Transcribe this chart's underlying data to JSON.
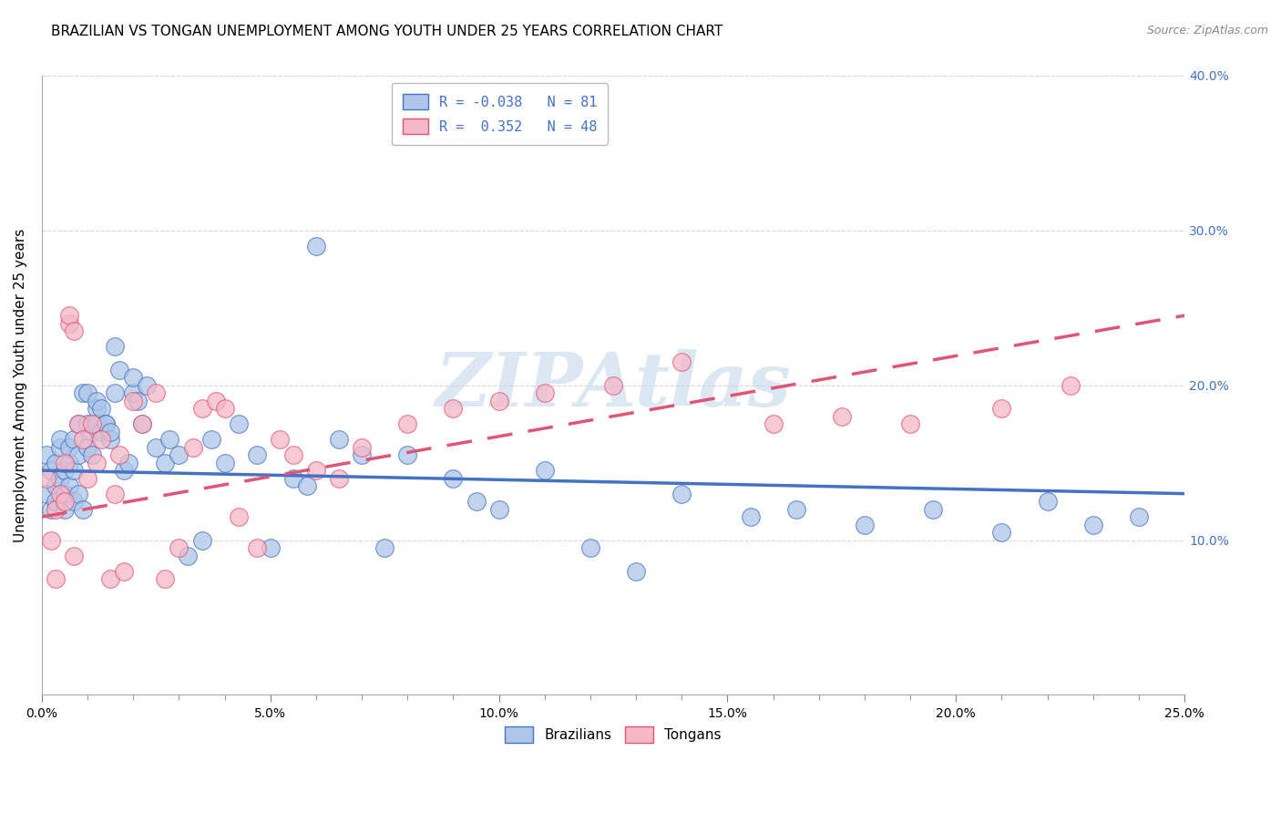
{
  "title": "BRAZILIAN VS TONGAN UNEMPLOYMENT AMONG YOUTH UNDER 25 YEARS CORRELATION CHART",
  "source": "Source: ZipAtlas.com",
  "ylabel": "Unemployment Among Youth under 25 years",
  "xlim": [
    0.0,
    0.25
  ],
  "ylim": [
    0.0,
    0.4
  ],
  "xtick_vals": [
    0.0,
    0.05,
    0.1,
    0.15,
    0.2,
    0.25
  ],
  "xtick_labels": [
    "0.0%",
    "5.0%",
    "10.0%",
    "15.0%",
    "20.0%",
    "25.0%"
  ],
  "ytick_vals": [
    0.1,
    0.2,
    0.3,
    0.4
  ],
  "ytick_labels": [
    "10.0%",
    "20.0%",
    "30.0%",
    "40.0%"
  ],
  "brazilian_fill_color": "#aec6e8",
  "brazilian_edge_color": "#4472c4",
  "tongan_fill_color": "#f4b8c8",
  "tongan_edge_color": "#e05575",
  "brazil_line_color": "#4472c4",
  "tongan_line_color": "#e05575",
  "watermark": "ZIPAtlas",
  "watermark_color": "#c5d8ee",
  "grid_color": "#cccccc",
  "bg_color": "#ffffff",
  "brazil_line_intercept": 0.145,
  "brazil_line_slope": -0.06,
  "tongan_line_intercept": 0.115,
  "tongan_line_slope": 0.52,
  "title_fontsize": 11,
  "tick_fontsize": 10,
  "legend_fontsize": 11,
  "ylabel_fontsize": 11,
  "brazilian_R": -0.038,
  "brazilian_N": 81,
  "tongan_R": 0.352,
  "tongan_N": 48,
  "brazilians_x": [
    0.001,
    0.001,
    0.002,
    0.002,
    0.003,
    0.003,
    0.003,
    0.004,
    0.004,
    0.004,
    0.005,
    0.005,
    0.005,
    0.006,
    0.006,
    0.006,
    0.007,
    0.007,
    0.007,
    0.008,
    0.008,
    0.008,
    0.009,
    0.009,
    0.01,
    0.01,
    0.01,
    0.011,
    0.011,
    0.012,
    0.012,
    0.012,
    0.013,
    0.013,
    0.014,
    0.014,
    0.015,
    0.015,
    0.016,
    0.016,
    0.017,
    0.018,
    0.019,
    0.02,
    0.02,
    0.021,
    0.022,
    0.023,
    0.025,
    0.027,
    0.028,
    0.03,
    0.032,
    0.035,
    0.037,
    0.04,
    0.043,
    0.047,
    0.05,
    0.055,
    0.058,
    0.06,
    0.065,
    0.07,
    0.075,
    0.08,
    0.09,
    0.095,
    0.1,
    0.11,
    0.12,
    0.13,
    0.14,
    0.155,
    0.165,
    0.18,
    0.195,
    0.21,
    0.22,
    0.23,
    0.24
  ],
  "brazilians_y": [
    0.13,
    0.155,
    0.12,
    0.145,
    0.135,
    0.15,
    0.125,
    0.14,
    0.16,
    0.165,
    0.13,
    0.145,
    0.12,
    0.15,
    0.135,
    0.16,
    0.145,
    0.165,
    0.125,
    0.13,
    0.155,
    0.175,
    0.12,
    0.195,
    0.175,
    0.16,
    0.195,
    0.155,
    0.17,
    0.185,
    0.19,
    0.175,
    0.185,
    0.17,
    0.175,
    0.175,
    0.165,
    0.17,
    0.195,
    0.225,
    0.21,
    0.145,
    0.15,
    0.195,
    0.205,
    0.19,
    0.175,
    0.2,
    0.16,
    0.15,
    0.165,
    0.155,
    0.09,
    0.1,
    0.165,
    0.15,
    0.175,
    0.155,
    0.095,
    0.14,
    0.135,
    0.29,
    0.165,
    0.155,
    0.095,
    0.155,
    0.14,
    0.125,
    0.12,
    0.145,
    0.095,
    0.08,
    0.13,
    0.115,
    0.12,
    0.11,
    0.12,
    0.105,
    0.125,
    0.11,
    0.115
  ],
  "tongans_x": [
    0.001,
    0.002,
    0.003,
    0.003,
    0.004,
    0.005,
    0.005,
    0.006,
    0.006,
    0.007,
    0.007,
    0.008,
    0.009,
    0.01,
    0.011,
    0.012,
    0.013,
    0.015,
    0.016,
    0.017,
    0.018,
    0.02,
    0.022,
    0.025,
    0.027,
    0.03,
    0.033,
    0.035,
    0.038,
    0.04,
    0.043,
    0.047,
    0.052,
    0.055,
    0.06,
    0.065,
    0.07,
    0.08,
    0.09,
    0.1,
    0.11,
    0.125,
    0.14,
    0.16,
    0.175,
    0.19,
    0.21,
    0.225
  ],
  "tongans_y": [
    0.14,
    0.1,
    0.075,
    0.12,
    0.13,
    0.125,
    0.15,
    0.24,
    0.245,
    0.235,
    0.09,
    0.175,
    0.165,
    0.14,
    0.175,
    0.15,
    0.165,
    0.075,
    0.13,
    0.155,
    0.08,
    0.19,
    0.175,
    0.195,
    0.075,
    0.095,
    0.16,
    0.185,
    0.19,
    0.185,
    0.115,
    0.095,
    0.165,
    0.155,
    0.145,
    0.14,
    0.16,
    0.175,
    0.185,
    0.19,
    0.195,
    0.2,
    0.215,
    0.175,
    0.18,
    0.175,
    0.185,
    0.2
  ]
}
